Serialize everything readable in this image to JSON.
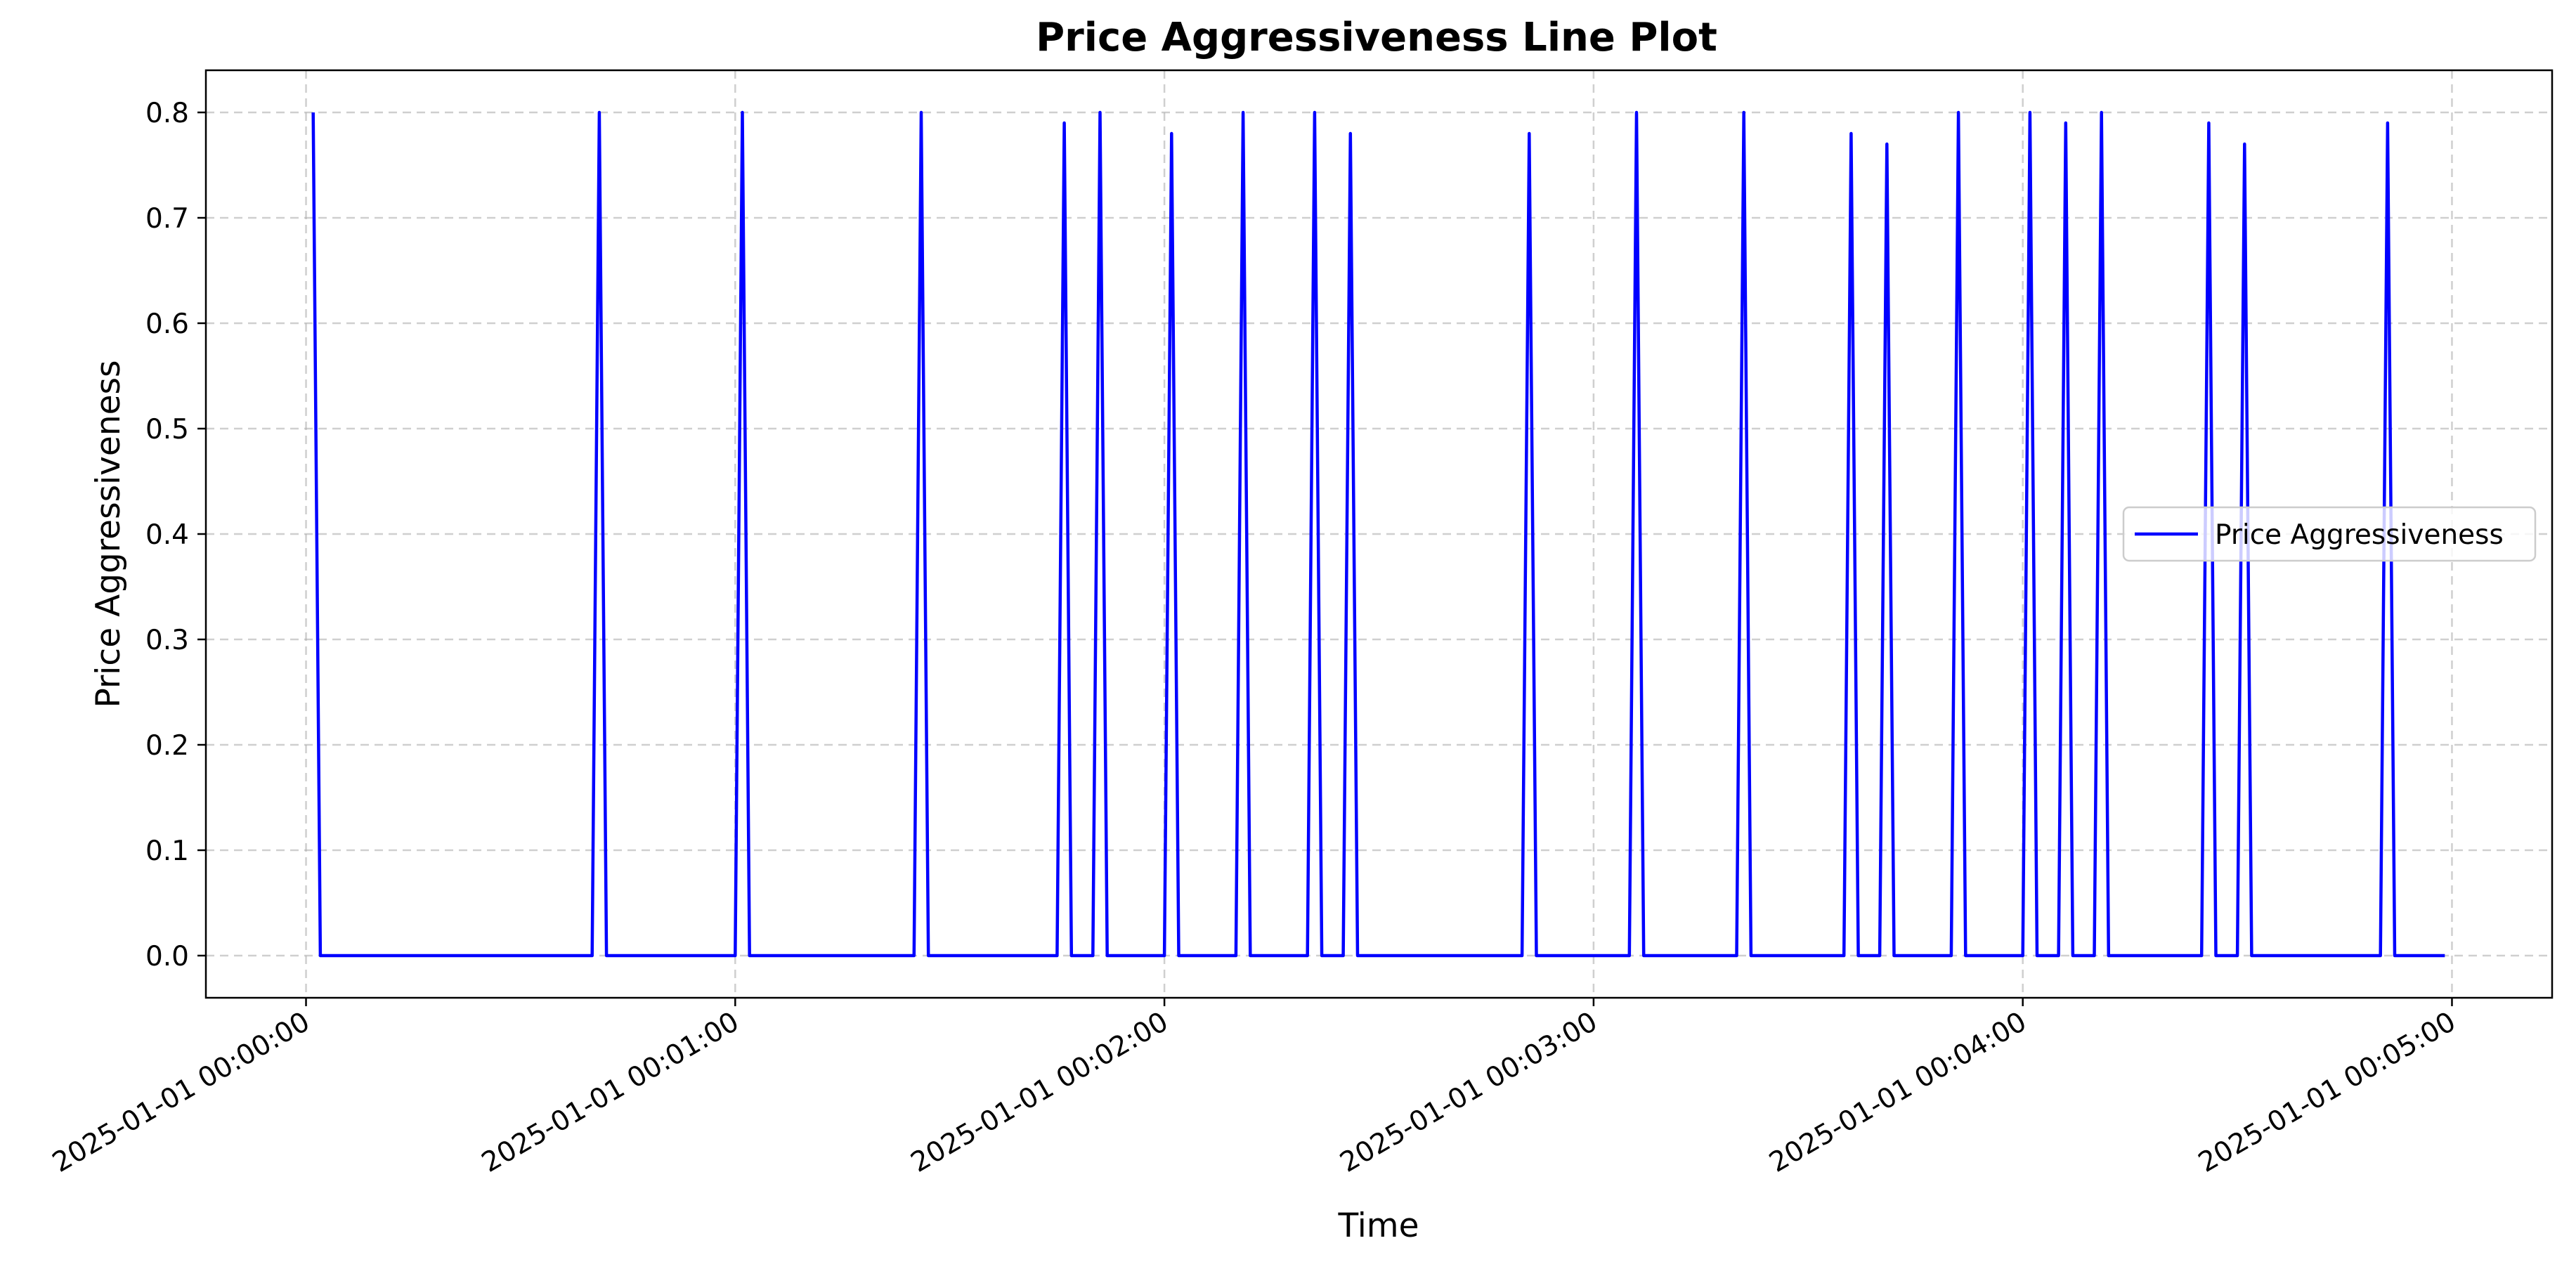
{
  "chart_data": {
    "type": "line",
    "title": "Price Aggressiveness Line Plot",
    "xlabel": "Time",
    "ylabel": "Price Aggressiveness",
    "x_ticks": [
      "2025-01-01 00:00:00",
      "2025-01-01 00:01:00",
      "2025-01-01 00:02:00",
      "2025-01-01 00:03:00",
      "2025-01-01 00:04:00",
      "2025-01-01 00:05:00"
    ],
    "y_ticks": [
      "0.0",
      "0.1",
      "0.2",
      "0.3",
      "0.4",
      "0.5",
      "0.6",
      "0.7",
      "0.8"
    ],
    "xlim": [
      "2024-12-31 23:59:46",
      "2025-01-01 00:05:14"
    ],
    "ylim": [
      -0.04,
      0.84
    ],
    "grid": true,
    "legend_position": "center-right",
    "series": [
      {
        "name": "Price Aggressiveness",
        "color": "#0000ff",
        "x": [
          "2025-01-01 00:00:01",
          "2025-01-01 00:00:02",
          "2025-01-01 00:00:40",
          "2025-01-01 00:00:41",
          "2025-01-01 00:00:42",
          "2025-01-01 00:01:00",
          "2025-01-01 00:01:01",
          "2025-01-01 00:01:02",
          "2025-01-01 00:01:25",
          "2025-01-01 00:01:26",
          "2025-01-01 00:01:27",
          "2025-01-01 00:01:45",
          "2025-01-01 00:01:46",
          "2025-01-01 00:01:47",
          "2025-01-01 00:01:50",
          "2025-01-01 00:01:51",
          "2025-01-01 00:01:52",
          "2025-01-01 00:02:00",
          "2025-01-01 00:02:01",
          "2025-01-01 00:02:02",
          "2025-01-01 00:02:10",
          "2025-01-01 00:02:11",
          "2025-01-01 00:02:12",
          "2025-01-01 00:02:20",
          "2025-01-01 00:02:21",
          "2025-01-01 00:02:22",
          "2025-01-01 00:02:25",
          "2025-01-01 00:02:26",
          "2025-01-01 00:02:27",
          "2025-01-01 00:02:50",
          "2025-01-01 00:02:51",
          "2025-01-01 00:02:52",
          "2025-01-01 00:03:05",
          "2025-01-01 00:03:06",
          "2025-01-01 00:03:07",
          "2025-01-01 00:03:20",
          "2025-01-01 00:03:21",
          "2025-01-01 00:03:22",
          "2025-01-01 00:03:35",
          "2025-01-01 00:03:36",
          "2025-01-01 00:03:37",
          "2025-01-01 00:03:40",
          "2025-01-01 00:03:41",
          "2025-01-01 00:03:42",
          "2025-01-01 00:03:50",
          "2025-01-01 00:03:51",
          "2025-01-01 00:03:52",
          "2025-01-01 00:04:00",
          "2025-01-01 00:04:01",
          "2025-01-01 00:04:02",
          "2025-01-01 00:04:05",
          "2025-01-01 00:04:06",
          "2025-01-01 00:04:07",
          "2025-01-01 00:04:10",
          "2025-01-01 00:04:11",
          "2025-01-01 00:04:12",
          "2025-01-01 00:04:25",
          "2025-01-01 00:04:26",
          "2025-01-01 00:04:27",
          "2025-01-01 00:04:30",
          "2025-01-01 00:04:31",
          "2025-01-01 00:04:32",
          "2025-01-01 00:04:50",
          "2025-01-01 00:04:51",
          "2025-01-01 00:04:52",
          "2025-01-01 00:04:59"
        ],
        "y": [
          0.8,
          0.0,
          0.0,
          0.8,
          0.0,
          0.0,
          0.8,
          0.0,
          0.0,
          0.8,
          0.0,
          0.0,
          0.79,
          0.0,
          0.0,
          0.8,
          0.0,
          0.0,
          0.78,
          0.0,
          0.0,
          0.8,
          0.0,
          0.0,
          0.8,
          0.0,
          0.0,
          0.78,
          0.0,
          0.0,
          0.78,
          0.0,
          0.0,
          0.8,
          0.0,
          0.0,
          0.8,
          0.0,
          0.0,
          0.78,
          0.0,
          0.0,
          0.77,
          0.0,
          0.0,
          0.8,
          0.0,
          0.0,
          0.8,
          0.0,
          0.0,
          0.79,
          0.0,
          0.0,
          0.8,
          0.0,
          0.0,
          0.79,
          0.0,
          0.0,
          0.77,
          0.0,
          0.0,
          0.79,
          0.0,
          0.0
        ]
      }
    ]
  }
}
